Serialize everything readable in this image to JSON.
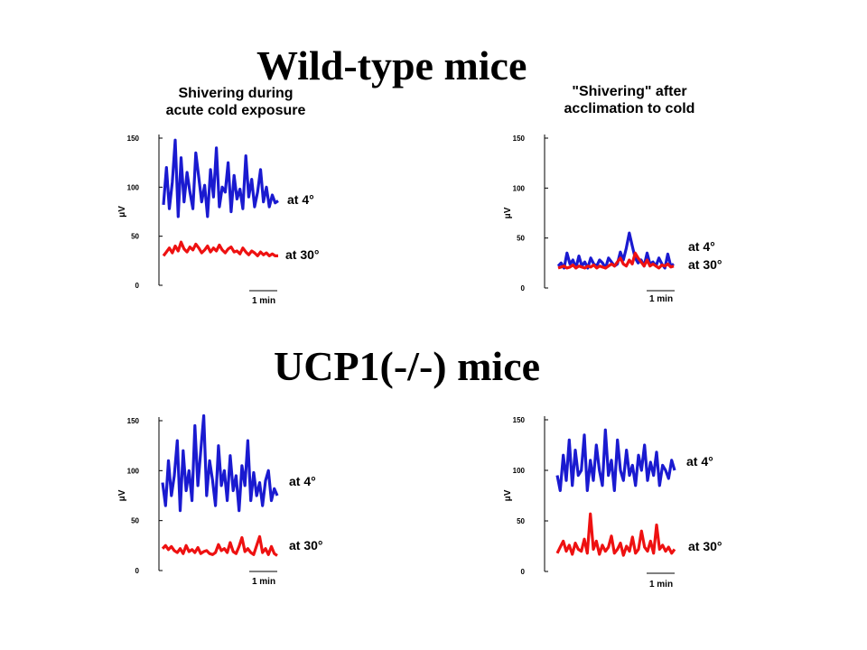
{
  "headings": {
    "wild_type": "Wild-type mice",
    "ucp1_ko": "UCP1(-/-) mice"
  },
  "colors": {
    "cold": "#1a1ad0",
    "warm": "#ee1111",
    "axis": "#000000"
  },
  "chart_data": [
    {
      "type": "line",
      "group": "Wild-type mice",
      "title": "Shivering during acute cold exposure",
      "title_lines": [
        "Shivering during",
        "acute cold exposure"
      ],
      "xlabel": "",
      "ylabel": "μV",
      "yticks": [
        "150",
        "100",
        "50",
        "0"
      ],
      "ylim": [
        0,
        150
      ],
      "scale_bar": "1 min",
      "labels": {
        "cold": "at 4°",
        "warm": "at 30°"
      },
      "series": [
        {
          "key": "cold",
          "values": [
            82,
            120,
            78,
            105,
            148,
            70,
            130,
            85,
            115,
            95,
            78,
            135,
            110,
            85,
            102,
            70,
            118,
            90,
            140,
            80,
            100,
            95,
            125,
            75,
            112,
            88,
            98,
            78,
            132,
            90,
            108,
            80,
            95,
            118,
            85,
            100,
            80,
            92,
            84,
            86
          ]
        },
        {
          "key": "warm",
          "values": [
            30,
            34,
            38,
            33,
            40,
            35,
            44,
            37,
            34,
            39,
            36,
            42,
            38,
            33,
            36,
            40,
            34,
            38,
            35,
            41,
            36,
            33,
            37,
            39,
            34,
            35,
            32,
            38,
            34,
            31,
            35,
            33,
            30,
            34,
            31,
            33,
            30,
            32,
            30,
            30
          ]
        }
      ]
    },
    {
      "type": "line",
      "group": "Wild-type mice",
      "title": "\"Shivering\" after acclimation to cold",
      "title_lines": [
        "\"Shivering\" after",
        "acclimation to cold"
      ],
      "xlabel": "",
      "ylabel": "μV",
      "yticks": [
        "150",
        "100",
        "50",
        "0"
      ],
      "ylim": [
        0,
        150
      ],
      "scale_bar": "1 min",
      "labels": {
        "cold": "at 4°",
        "warm": "at 30°"
      },
      "series": [
        {
          "key": "cold",
          "values": [
            22,
            25,
            20,
            35,
            24,
            28,
            20,
            32,
            22,
            26,
            20,
            30,
            24,
            22,
            28,
            25,
            20,
            30,
            26,
            22,
            24,
            36,
            28,
            40,
            55,
            42,
            30,
            25,
            28,
            22,
            35,
            24,
            26,
            22,
            30,
            24,
            20,
            34,
            22,
            24
          ]
        },
        {
          "key": "warm",
          "values": [
            20,
            21,
            22,
            20,
            21,
            23,
            20,
            22,
            21,
            20,
            22,
            21,
            23,
            20,
            22,
            21,
            20,
            22,
            24,
            22,
            26,
            30,
            24,
            22,
            28,
            24,
            35,
            30,
            26,
            22,
            28,
            22,
            24,
            22,
            20,
            23,
            22,
            24,
            21,
            22
          ]
        }
      ]
    },
    {
      "type": "line",
      "group": "UCP1(-/-) mice",
      "title": "",
      "title_lines": [],
      "xlabel": "",
      "ylabel": "μV",
      "yticks": [
        "150",
        "100",
        "50",
        "0"
      ],
      "ylim": [
        0,
        150
      ],
      "scale_bar": "1 min",
      "labels": {
        "cold": "at 4°",
        "warm": "at 30°"
      },
      "series": [
        {
          "key": "cold",
          "values": [
            88,
            65,
            110,
            75,
            95,
            130,
            60,
            120,
            80,
            100,
            70,
            145,
            85,
            120,
            155,
            75,
            110,
            90,
            65,
            125,
            85,
            100,
            70,
            115,
            80,
            95,
            60,
            105,
            85,
            130,
            70,
            98,
            75,
            88,
            65,
            90,
            100,
            70,
            82,
            75
          ]
        },
        {
          "key": "warm",
          "values": [
            22,
            25,
            21,
            24,
            20,
            18,
            22,
            17,
            25,
            19,
            21,
            18,
            23,
            17,
            19,
            20,
            17,
            16,
            18,
            26,
            20,
            22,
            18,
            28,
            19,
            17,
            24,
            33,
            19,
            22,
            18,
            16,
            25,
            34,
            18,
            22,
            16,
            24,
            17,
            15
          ]
        }
      ]
    },
    {
      "type": "line",
      "group": "UCP1(-/-) mice",
      "title": "",
      "title_lines": [],
      "xlabel": "",
      "ylabel": "μV",
      "yticks": [
        "150",
        "100",
        "50",
        "0"
      ],
      "ylim": [
        0,
        150
      ],
      "scale_bar": "1 min",
      "labels": {
        "cold": "at 4°",
        "warm": "at 30°"
      },
      "series": [
        {
          "key": "cold",
          "values": [
            95,
            80,
            115,
            90,
            130,
            85,
            120,
            95,
            100,
            135,
            80,
            110,
            90,
            125,
            100,
            85,
            140,
            95,
            110,
            80,
            130,
            100,
            90,
            120,
            95,
            105,
            85,
            115,
            100,
            125,
            90,
            108,
            95,
            118,
            85,
            105,
            100,
            92,
            110,
            100
          ]
        },
        {
          "key": "warm",
          "values": [
            18,
            24,
            30,
            20,
            26,
            17,
            28,
            22,
            20,
            32,
            18,
            57,
            22,
            30,
            17,
            26,
            20,
            24,
            35,
            18,
            22,
            28,
            16,
            25,
            20,
            34,
            18,
            22,
            40,
            24,
            20,
            30,
            18,
            46,
            22,
            26,
            20,
            24,
            18,
            22
          ]
        }
      ]
    }
  ]
}
